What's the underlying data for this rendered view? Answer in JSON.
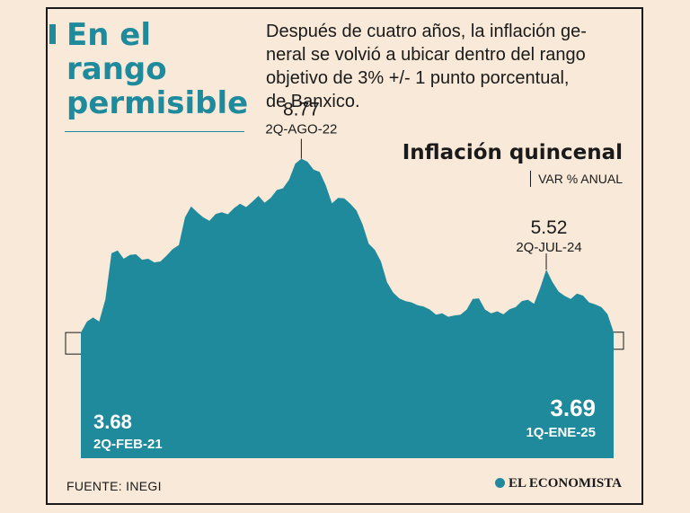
{
  "title": {
    "lines": [
      "En el",
      "rango",
      "permisible"
    ]
  },
  "description": {
    "lines": [
      "Después de cuatro años, la inflación ge-",
      "neral se volvió a ubicar dentro del rango",
      "objetivo de 3% +/- 1 punto porcentual,",
      "de Banxico."
    ]
  },
  "source": "FUENTE: INEGI",
  "brand": "EL ECONOMISTA",
  "chart_data": {
    "type": "area",
    "title": "Inflación quincenal",
    "subtitle": "VAR % ANUAL",
    "ylim": [
      0,
      9.6
    ],
    "grid": false,
    "series_color": "#1f8a9c",
    "x_start": "2Q-FEB-21",
    "x_end": "1Q-ENE-25",
    "values": [
      3.68,
      4.0,
      4.12,
      4.0,
      4.65,
      6.0,
      6.08,
      5.84,
      5.95,
      5.97,
      5.81,
      5.84,
      5.73,
      5.76,
      5.93,
      6.12,
      6.24,
      7.05,
      7.37,
      7.2,
      7.05,
      6.95,
      7.15,
      7.2,
      7.14,
      7.32,
      7.45,
      7.35,
      7.51,
      7.68,
      7.48,
      7.62,
      7.85,
      7.9,
      8.15,
      8.62,
      8.77,
      8.68,
      8.45,
      8.38,
      7.99,
      7.46,
      7.62,
      7.61,
      7.45,
      7.25,
      6.85,
      6.28,
      6.1,
      5.76,
      5.15,
      4.85,
      4.68,
      4.6,
      4.56,
      4.48,
      4.44,
      4.35,
      4.2,
      4.24,
      4.14,
      4.18,
      4.2,
      4.35,
      4.66,
      4.68,
      4.35,
      4.24,
      4.3,
      4.21,
      4.36,
      4.42,
      4.6,
      4.64,
      4.52,
      4.98,
      5.52,
      5.16,
      4.88,
      4.75,
      4.66,
      4.82,
      4.76,
      4.56,
      4.5,
      4.42,
      4.22,
      3.69
    ],
    "annotations": [
      {
        "value_label": "8.77",
        "date_label": "2Q-AGO-22"
      },
      {
        "value_label": "5.52",
        "date_label": "2Q-JUL-24"
      },
      {
        "value_label": "3.68",
        "date_label": "2Q-FEB-21"
      },
      {
        "value_label": "3.69",
        "date_label": "1Q-ENE-25"
      }
    ]
  }
}
